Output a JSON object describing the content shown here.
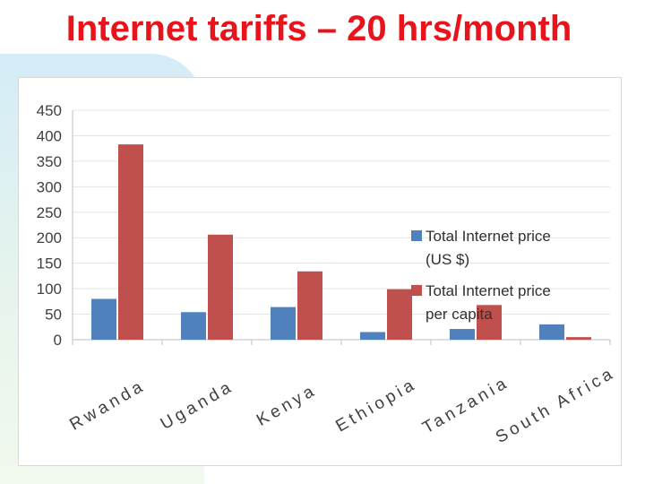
{
  "slide": {
    "title": "Internet tariffs – 20 hrs/month"
  },
  "colors": {
    "title": "#e8141c",
    "series_price": "#4f81bd",
    "series_per_capita": "#c0504d"
  },
  "chart_data": {
    "type": "bar",
    "categories": [
      "Rwanda",
      "Uganda",
      "Kenya",
      "Ethiopia",
      "Tanzania",
      "South Africa"
    ],
    "series": [
      {
        "name": "Total Internet price (US $)",
        "values": [
          80,
          54,
          64,
          15,
          21,
          30
        ]
      },
      {
        "name": "Total Internet price per capita",
        "values": [
          383,
          206,
          134,
          99,
          68,
          5
        ]
      }
    ],
    "yticks": [
      "0",
      "50",
      "100",
      "150",
      "200",
      "250",
      "300",
      "350",
      "400",
      "450"
    ],
    "ylim": [
      0,
      450
    ],
    "grid": true,
    "legend": "right"
  }
}
